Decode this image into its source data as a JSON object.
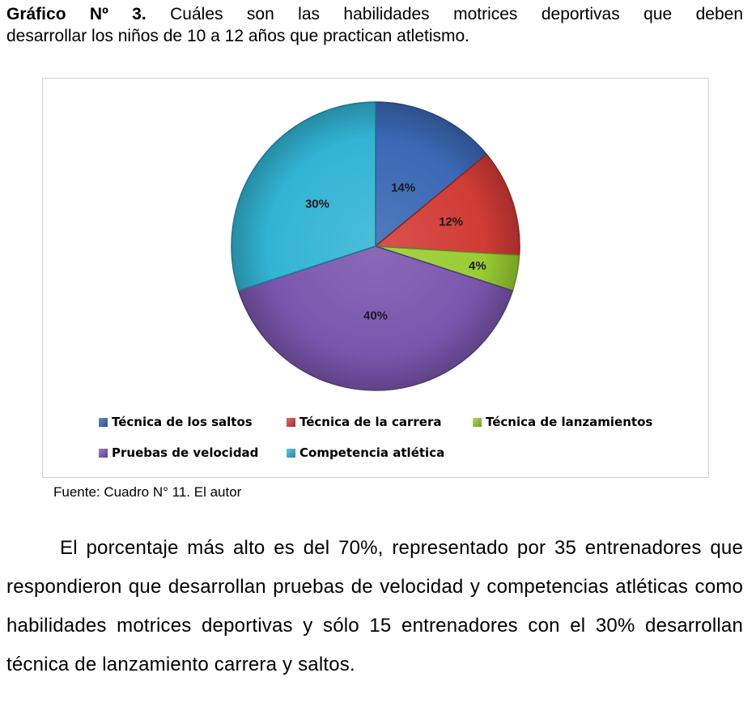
{
  "heading": {
    "prefix": "Gráfico Nº 3.",
    "line1_rest": "Cuáles son las habilidades motrices deportivas que deben",
    "line2": "desarrollar los niños de 10 a 12 años que practican atletismo."
  },
  "chart_data": {
    "type": "pie",
    "title": "",
    "slices": [
      {
        "label": "Técnica de los saltos",
        "value": 14,
        "display": "14%",
        "color": "#3A68B4"
      },
      {
        "label": "Técnica de la carrera",
        "value": 12,
        "display": "12%",
        "color": "#D23B36"
      },
      {
        "label": "Técnica de lanzamientos",
        "value": 4,
        "display": "4%",
        "color": "#9ACD32"
      },
      {
        "label": "Pruebas de velocidad",
        "value": 40,
        "display": "40%",
        "color": "#7B56AE"
      },
      {
        "label": "Competencia atlética",
        "value": 30,
        "display": "30%",
        "color": "#32B4D4"
      }
    ],
    "start_angle": "12 o'clock, clockwise",
    "legend_position": "bottom"
  },
  "source": "Fuente: Cuadro N° 11. El autor",
  "paragraph": "El porcentaje más alto es del 70%, representado por 35 entrenadores que respondieron que desarrollan pruebas de velocidad y competencias atléticas como habilidades motrices deportivas y sólo 15 entrenadores con el 30% desarrollan técnica de lanzamiento carrera y saltos."
}
